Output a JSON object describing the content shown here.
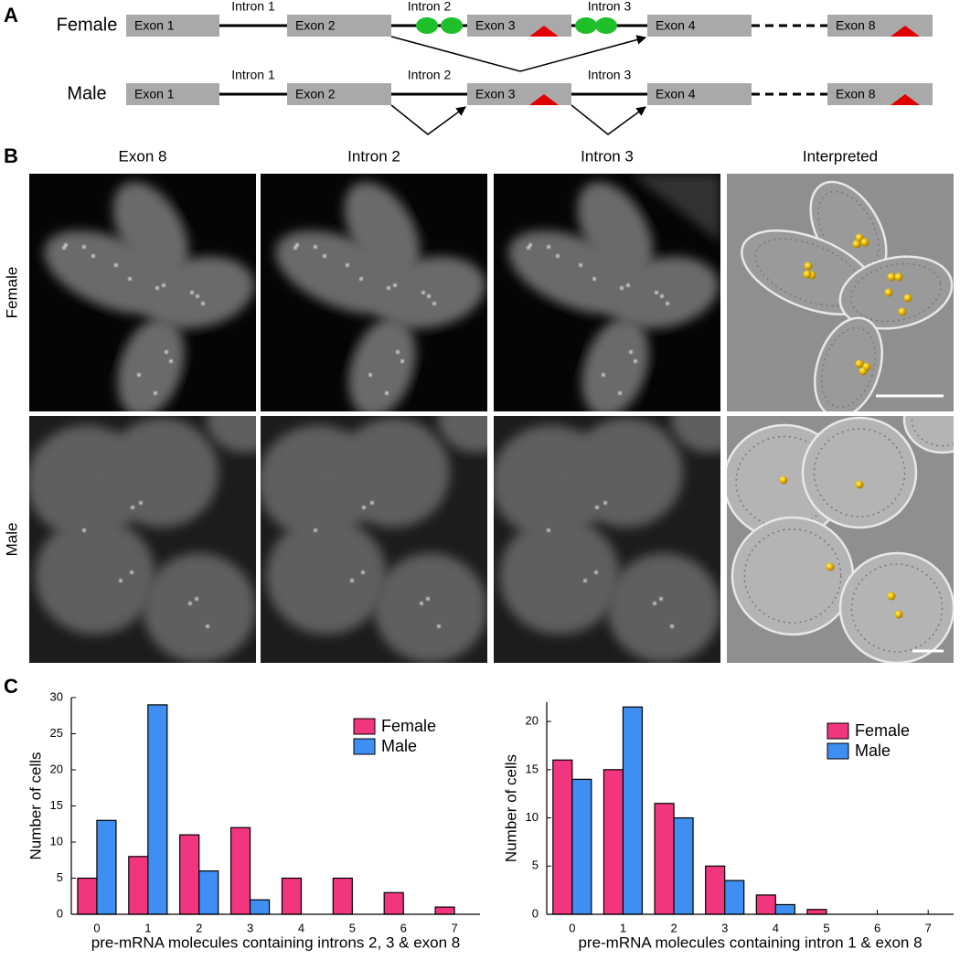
{
  "panel_a": {
    "label": "A",
    "rows": [
      {
        "name": "Female",
        "exons": [
          "Exon 1",
          "Exon 2",
          "Exon 3",
          "Exon 4",
          "Exon 8"
        ],
        "introns": [
          "Intron 1",
          "Intron 2",
          "Intron 3"
        ]
      },
      {
        "name": "Male",
        "exons": [
          "Exon 1",
          "Exon 2",
          "Exon 3",
          "Exon 4",
          "Exon 8"
        ],
        "introns": [
          "Intron 1",
          "Intron 2",
          "Intron 3"
        ]
      }
    ]
  },
  "panel_b": {
    "label": "B",
    "columns": [
      "Exon 8",
      "Intron 2",
      "Intron 3",
      "Interpreted"
    ],
    "rows": [
      "Female",
      "Male"
    ]
  },
  "panel_c": {
    "label": "C"
  },
  "chart_data": [
    {
      "type": "bar",
      "categories": [
        "0",
        "1",
        "2",
        "3",
        "4",
        "5",
        "6",
        "7"
      ],
      "series": [
        {
          "name": "Female",
          "color": "#f2357f",
          "values": [
            5,
            8,
            11,
            12,
            5,
            5,
            3,
            1
          ]
        },
        {
          "name": "Male",
          "color": "#3f8ef2",
          "values": [
            13,
            29,
            6,
            2,
            0,
            0,
            0,
            0
          ]
        }
      ],
      "xlabel": "pre-mRNA molecules containing introns 2, 3 & exon 8",
      "ylabel": "Number of cells",
      "ylim": [
        0,
        30
      ],
      "yticks": [
        0,
        5,
        10,
        15,
        20,
        25,
        30
      ],
      "legend": "upper right"
    },
    {
      "type": "bar",
      "categories": [
        "0",
        "1",
        "2",
        "3",
        "4",
        "5",
        "6",
        "7"
      ],
      "series": [
        {
          "name": "Female",
          "color": "#f2357f",
          "values": [
            16,
            15,
            11.5,
            5,
            2,
            0.5,
            0,
            0
          ]
        },
        {
          "name": "Male",
          "color": "#3f8ef2",
          "values": [
            14,
            21.5,
            10,
            3.5,
            1,
            0,
            0,
            0
          ]
        }
      ],
      "xlabel": "pre-mRNA molecules containing intron 1 & exon 8",
      "ylabel": "Number of cells",
      "ylim": [
        0,
        22
      ],
      "yticks": [
        0,
        5,
        10,
        15,
        20
      ],
      "legend": "upper right"
    }
  ]
}
